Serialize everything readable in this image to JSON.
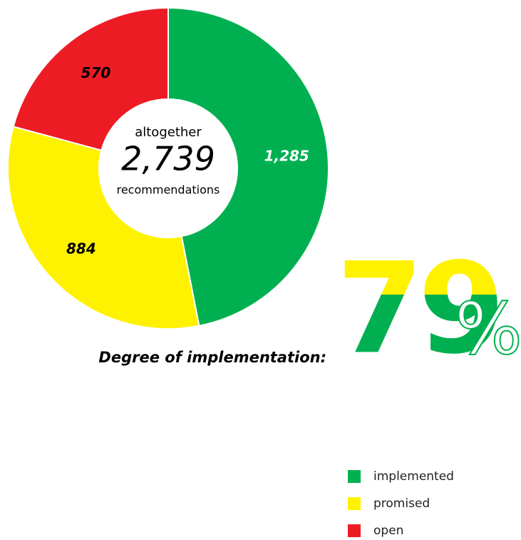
{
  "chart_data": {
    "type": "donut",
    "categories": [
      "implemented",
      "promised",
      "open"
    ],
    "values": [
      1285,
      884,
      570
    ],
    "value_labels": [
      "1,285",
      "884",
      "570"
    ],
    "colors": [
      "#00b050",
      "#fff200",
      "#ed1c24"
    ],
    "center": {
      "top": "altogether",
      "total": {
        "value": 2739,
        "label": "2,739"
      },
      "bottom": "recommendations"
    },
    "kpi": {
      "label": "Degree of implementation:",
      "value": 79,
      "unit": "%"
    },
    "legend": "bottom-right"
  }
}
